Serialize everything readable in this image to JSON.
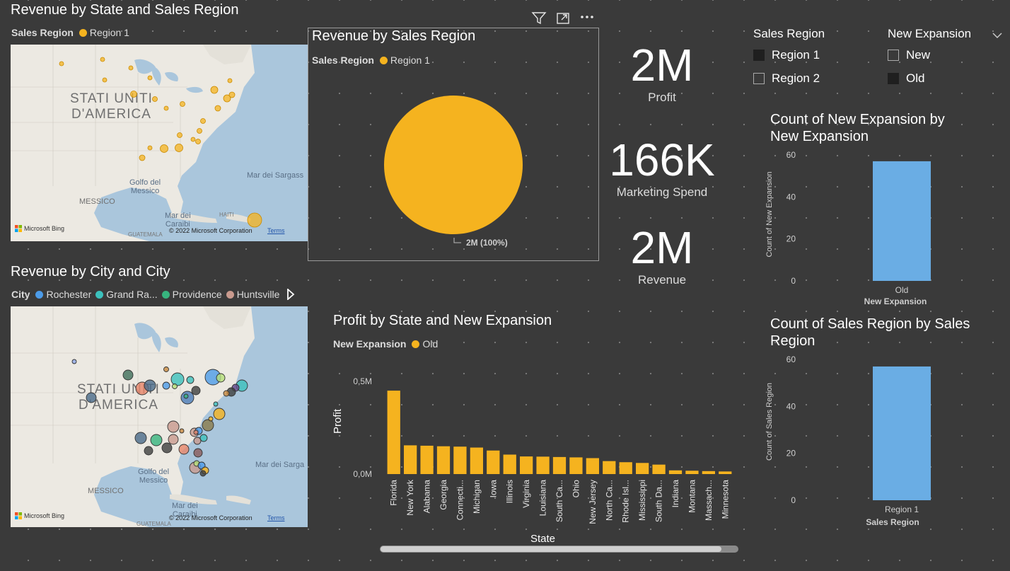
{
  "map_state": {
    "title": "Revenue by State and Sales Region",
    "legend_title": "Sales Region",
    "legend_items": [
      {
        "label": "Region 1",
        "color": "#F5B31F"
      }
    ],
    "country_label_1": "STATI UNITI",
    "country_label_2": "D'AMERICA",
    "gulf_1": "Golfo del",
    "gulf_2": "Messico",
    "sargasso": "Mar dei Sargass",
    "mexico": "MESSICO",
    "caribbean_1": "Mar dei",
    "caribbean_2": "Caraibi",
    "haiti": "HAITI",
    "guatemala": "GUATEMALA",
    "bing": "Microsoft Bing",
    "copyright": "© 2022 Microsoft Corporation",
    "terms": "Terms"
  },
  "map_city": {
    "title": "Revenue by City and City",
    "legend_title": "City",
    "legend_items": [
      {
        "label": "Rochester",
        "color": "#4C9BE8"
      },
      {
        "label": "Grand Ra...",
        "color": "#3CC1BD"
      },
      {
        "label": "Providence",
        "color": "#37B47E"
      },
      {
        "label": "Huntsville",
        "color": "#C99A8E"
      }
    ],
    "country_label_1": "STATI UNITI",
    "country_label_2": "D'AMERICA",
    "gulf_1": "Golfo del",
    "gulf_2": "Messico",
    "sargasso": "Mar dei Sarga",
    "mexico": "MESSICO",
    "caribbean_1": "Mar dei",
    "caribbean_2": "Caraibi",
    "guatemala": "GUATEMALA",
    "bing": "Microsoft Bing",
    "copyright": "© 2022 Microsoft Corporation",
    "terms": "Terms"
  },
  "pie": {
    "title": "Revenue by Sales Region",
    "legend_title": "Sales Region",
    "legend_items": [
      {
        "label": "Region 1",
        "color": "#F5B31F"
      }
    ],
    "slice_label": "2M (100%)",
    "icons": [
      "filter-icon",
      "focus-mode-icon",
      "more-options-icon"
    ]
  },
  "cards": [
    {
      "value": "2M",
      "label": "Profit"
    },
    {
      "value": "166K",
      "label": "Marketing Spend"
    },
    {
      "value": "2M",
      "label": "Revenue"
    }
  ],
  "slicer_region": {
    "title": "Sales Region",
    "items": [
      {
        "label": "Region 1",
        "checked": true
      },
      {
        "label": "Region 2",
        "checked": false
      }
    ]
  },
  "slicer_expansion": {
    "title": "New Expansion",
    "items": [
      {
        "label": "New",
        "checked": false
      },
      {
        "label": "Old",
        "checked": true
      }
    ]
  },
  "bar_profit": {
    "title": "Profit by State and New Expansion",
    "legend_title": "New Expansion",
    "legend_items": [
      {
        "label": "Old",
        "color": "#F5B31F"
      }
    ],
    "y_ticks": [
      "0,5M",
      "0,0M"
    ],
    "ylabel": "Profit",
    "xlabel": "State"
  },
  "bar_new_exp": {
    "title_1": "Count of New Expansion by",
    "title_2": "New Expansion",
    "y_ticks": [
      "60",
      "40",
      "20",
      "0"
    ],
    "ylabel": "Count of New Expansion",
    "category": "Old",
    "xlabel": "New Expansion"
  },
  "bar_region": {
    "title_1": "Count of Sales Region by Sales",
    "title_2": "Region",
    "y_ticks": [
      "60",
      "40",
      "20",
      "0"
    ],
    "ylabel": "Count of Sales Region",
    "category": "Region 1",
    "xlabel": "Sales Region"
  },
  "chart_data": [
    {
      "type": "pie",
      "title": "Revenue by Sales Region",
      "categories": [
        "Region 1"
      ],
      "values": [
        100
      ],
      "data_labels": [
        "2M (100%)"
      ],
      "legend": "top-left"
    },
    {
      "type": "bar",
      "title": "Profit by State and New Expansion",
      "xlabel": "State",
      "ylabel": "Profit",
      "categories": [
        "Florida",
        "New York",
        "Alabama",
        "Georgia",
        "Connecti...",
        "Michigan",
        "Iowa",
        "Illinois",
        "Virginia",
        "Louisiana",
        "South Ca...",
        "Ohio",
        "New Jersey",
        "North Ca...",
        "Rhode Isl...",
        "Mississippi",
        "South Da...",
        "Indiana",
        "Montana",
        "Massach...",
        "Minnesota"
      ],
      "series": [
        {
          "name": "Old",
          "values": [
            450000,
            155000,
            153000,
            150000,
            148000,
            143000,
            127000,
            105000,
            95000,
            94000,
            92000,
            90000,
            86000,
            70000,
            64000,
            60000,
            51000,
            20000,
            18000,
            16000,
            14000
          ]
        }
      ],
      "ylim": [
        0,
        600000
      ],
      "color": "#F5B31F"
    },
    {
      "type": "bar",
      "title": "Count of New Expansion by New Expansion",
      "xlabel": "New Expansion",
      "ylabel": "Count of New Expansion",
      "categories": [
        "Old"
      ],
      "values": [
        57
      ],
      "ylim": [
        0,
        60
      ],
      "color": "#6AADE4"
    },
    {
      "type": "bar",
      "title": "Count of Sales Region by Sales Region",
      "xlabel": "Sales Region",
      "ylabel": "Count of Sales Region",
      "categories": [
        "Region 1"
      ],
      "values": [
        57
      ],
      "ylim": [
        0,
        60
      ],
      "color": "#6AADE4"
    }
  ]
}
